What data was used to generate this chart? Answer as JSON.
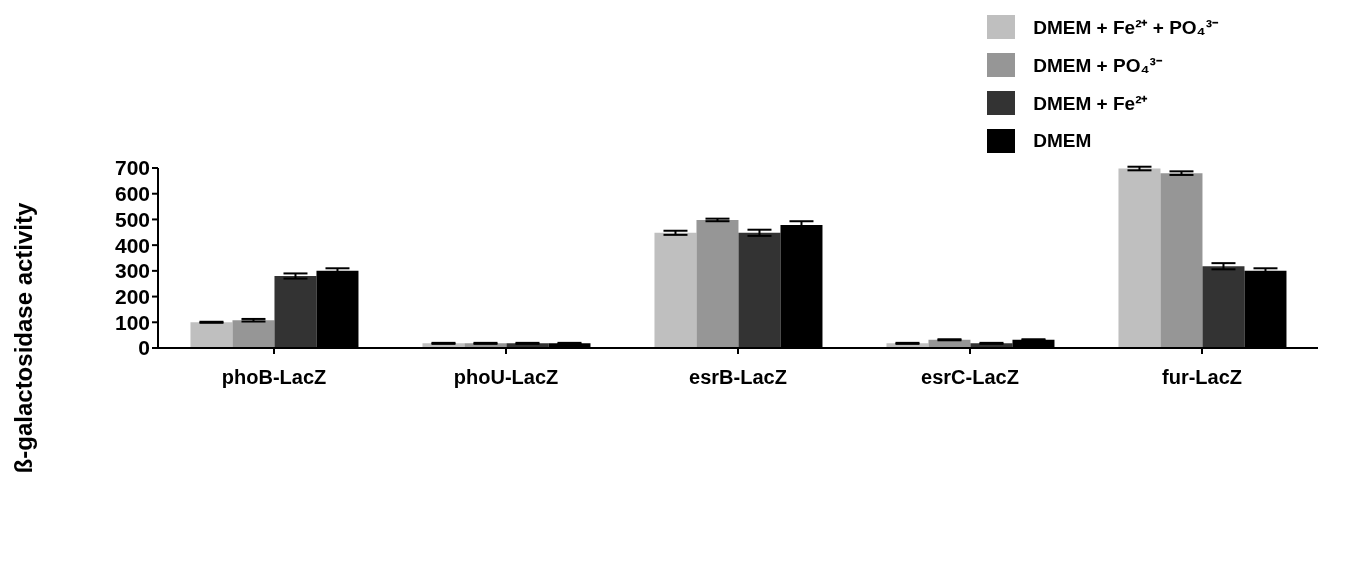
{
  "chart_data": {
    "type": "bar",
    "ylabel": "ß-galactosidase activity",
    "categories": [
      "phoB-LacZ",
      "phoU-LacZ",
      "esrB-LacZ",
      "esrC-LacZ",
      "fur-LacZ"
    ],
    "series": [
      {
        "name": "DMEM + Fe²⁺ + PO₄³⁻",
        "color": "#bfbfbf",
        "values": [
          100,
          18,
          448,
          18,
          698
        ],
        "errors": [
          2,
          2,
          8,
          2,
          7
        ]
      },
      {
        "name": "DMEM + PO₄³⁻",
        "color": "#969696",
        "values": [
          108,
          18,
          498,
          32,
          680
        ],
        "errors": [
          5,
          2,
          5,
          2,
          7
        ]
      },
      {
        "name": "DMEM + Fe²⁺",
        "color": "#333333",
        "values": [
          280,
          18,
          448,
          18,
          318
        ],
        "errors": [
          10,
          2,
          12,
          2,
          12
        ]
      },
      {
        "name": "DMEM",
        "color": "#000000",
        "values": [
          300,
          18,
          478,
          32,
          300
        ],
        "errors": [
          10,
          2,
          15,
          2,
          10
        ]
      }
    ],
    "ylim": [
      0,
      700
    ],
    "yticks": [
      0,
      100,
      200,
      300,
      400,
      500,
      600,
      700
    ],
    "grid": false,
    "legend": "top right"
  }
}
